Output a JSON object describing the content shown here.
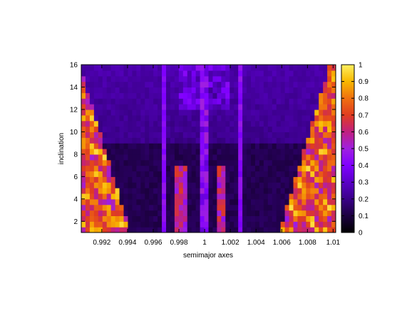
{
  "chart_data": {
    "type": "heatmap",
    "title": "",
    "xlabel": "semimajor axes",
    "ylabel": "inclination",
    "xlim": [
      0.9904,
      1.0102
    ],
    "ylim": [
      1,
      16
    ],
    "x_ticks": [
      0.992,
      0.994,
      0.996,
      0.998,
      1,
      1.002,
      1.004,
      1.006,
      1.008,
      1.01
    ],
    "x_tick_labels": [
      "0.992",
      "0.994",
      "0.996",
      "0.998",
      "1",
      "1.002",
      "1.004",
      "1.006",
      "1.008",
      "1.01"
    ],
    "y_ticks": [
      2,
      4,
      6,
      8,
      10,
      12,
      14,
      16
    ],
    "y_tick_labels": [
      "2",
      "4",
      "6",
      "8",
      "10",
      "12",
      "14",
      "16"
    ],
    "colorbar": {
      "range": [
        0,
        1
      ],
      "ticks": [
        0,
        0.1,
        0.2,
        0.3,
        0.4,
        0.5,
        0.6,
        0.7,
        0.8,
        0.9,
        1
      ],
      "tick_labels": [
        "0",
        "0.1",
        "0.2",
        "0.3",
        "0.4",
        "0.5",
        "0.6",
        "0.7",
        "0.8",
        "0.9",
        "1"
      ],
      "palette": [
        "#000000",
        "#1c0040",
        "#3a0088",
        "#5a00c8",
        "#8000ff",
        "#a020e0",
        "#c02080",
        "#e03c20",
        "#f07010",
        "#f8b800",
        "#fff060"
      ]
    },
    "grid": false,
    "legend": "none"
  }
}
